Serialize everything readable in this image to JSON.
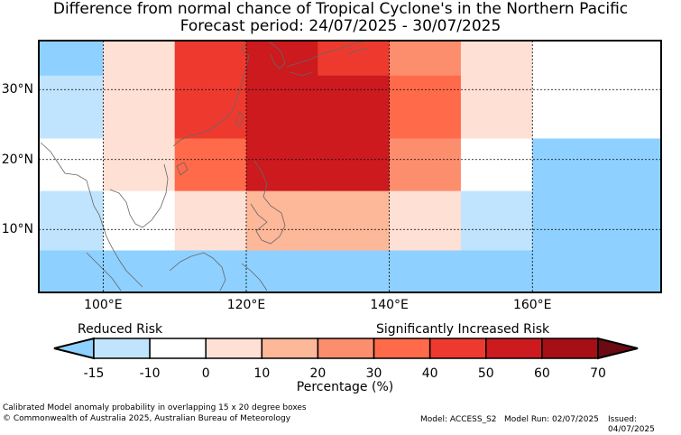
{
  "title": {
    "line1": "Difference from normal chance of Tropical Cyclone's in the Northern Pacific",
    "line2": "Forecast period: 24/07/2025 - 30/07/2025"
  },
  "map": {
    "lon_range": [
      91,
      178
    ],
    "lat_range": [
      1,
      37
    ],
    "lat_ticks": [
      {
        "value": 10,
        "label": "10°N"
      },
      {
        "value": 20,
        "label": "20°N"
      },
      {
        "value": 30,
        "label": "30°N"
      }
    ],
    "lon_ticks": [
      {
        "value": 100,
        "label": "100°E"
      },
      {
        "value": 120,
        "label": "120°E"
      },
      {
        "value": 140,
        "label": "140°E"
      },
      {
        "value": 160,
        "label": "160°E"
      }
    ],
    "cells": [
      {
        "lon0": 91,
        "lon1": 100,
        "lat0": 32,
        "lat1": 37,
        "color": "#8ed0ff"
      },
      {
        "lon0": 91,
        "lon1": 100,
        "lat0": 23,
        "lat1": 32,
        "color": "#c0e4fe"
      },
      {
        "lon0": 91,
        "lon1": 100,
        "lat0": 15.5,
        "lat1": 23,
        "color": "#ffffff"
      },
      {
        "lon0": 91,
        "lon1": 100,
        "lat0": 7,
        "lat1": 15.5,
        "color": "#c0e4fe"
      },
      {
        "lon0": 91,
        "lon1": 100,
        "lat0": 1,
        "lat1": 7,
        "color": "#8ed0ff"
      },
      {
        "lon0": 100,
        "lon1": 110,
        "lat0": 15.5,
        "lat1": 37,
        "color": "#ffe0d5"
      },
      {
        "lon0": 100,
        "lon1": 110,
        "lat0": 7,
        "lat1": 15.5,
        "color": "#ffffff"
      },
      {
        "lon0": 100,
        "lon1": 110,
        "lat0": 1,
        "lat1": 7,
        "color": "#8ed0ff"
      },
      {
        "lon0": 110,
        "lon1": 120,
        "lat0": 23,
        "lat1": 37,
        "color": "#ee3a2e"
      },
      {
        "lon0": 110,
        "lon1": 120,
        "lat0": 15.5,
        "lat1": 23,
        "color": "#ff6a4a"
      },
      {
        "lon0": 110,
        "lon1": 120,
        "lat0": 7,
        "lat1": 15.5,
        "color": "#ffe0d5"
      },
      {
        "lon0": 110,
        "lon1": 120,
        "lat0": 1,
        "lat1": 7,
        "color": "#8ed0ff"
      },
      {
        "lon0": 120,
        "lon1": 130,
        "lat0": 15.5,
        "lat1": 37,
        "color": "#cc1a1e"
      },
      {
        "lon0": 120,
        "lon1": 130,
        "lat0": 7,
        "lat1": 15.5,
        "color": "#fdb799"
      },
      {
        "lon0": 120,
        "lon1": 130,
        "lat0": 1,
        "lat1": 7,
        "color": "#8ed0ff"
      },
      {
        "lon0": 130,
        "lon1": 140,
        "lat0": 32,
        "lat1": 37,
        "color": "#ee3a2e"
      },
      {
        "lon0": 130,
        "lon1": 140,
        "lat0": 15.5,
        "lat1": 32,
        "color": "#cc1a1e"
      },
      {
        "lon0": 130,
        "lon1": 140,
        "lat0": 7,
        "lat1": 15.5,
        "color": "#fdb799"
      },
      {
        "lon0": 130,
        "lon1": 140,
        "lat0": 1,
        "lat1": 7,
        "color": "#8ed0ff"
      },
      {
        "lon0": 140,
        "lon1": 150,
        "lat0": 32,
        "lat1": 37,
        "color": "#fd8e6d"
      },
      {
        "lon0": 140,
        "lon1": 150,
        "lat0": 23,
        "lat1": 32,
        "color": "#ff6a4a"
      },
      {
        "lon0": 140,
        "lon1": 150,
        "lat0": 15.5,
        "lat1": 23,
        "color": "#fd8e6d"
      },
      {
        "lon0": 140,
        "lon1": 150,
        "lat0": 7,
        "lat1": 15.5,
        "color": "#ffe0d5"
      },
      {
        "lon0": 140,
        "lon1": 150,
        "lat0": 1,
        "lat1": 7,
        "color": "#8ed0ff"
      },
      {
        "lon0": 150,
        "lon1": 160,
        "lat0": 23,
        "lat1": 37,
        "color": "#ffe0d5"
      },
      {
        "lon0": 150,
        "lon1": 160,
        "lat0": 15.5,
        "lat1": 23,
        "color": "#ffffff"
      },
      {
        "lon0": 150,
        "lon1": 160,
        "lat0": 7,
        "lat1": 15.5,
        "color": "#c0e4fe"
      },
      {
        "lon0": 150,
        "lon1": 160,
        "lat0": 1,
        "lat1": 7,
        "color": "#8ed0ff"
      },
      {
        "lon0": 160,
        "lon1": 178,
        "lat0": 23,
        "lat1": 37,
        "color": "#ffffff"
      },
      {
        "lon0": 160,
        "lon1": 178,
        "lat0": 1,
        "lat1": 23,
        "color": "#8ed0ff"
      }
    ]
  },
  "colorbar": {
    "label_left": "Reduced Risk",
    "label_right": "Significantly Increased Risk",
    "xlabel": "Percentage (%)",
    "ticks": [
      "-15",
      "-10",
      "0",
      "10",
      "20",
      "30",
      "40",
      "50",
      "60",
      "70"
    ],
    "under_color": "#8ed0ff",
    "over_color": "#6b0a12",
    "segments": [
      {
        "from": -15,
        "to": -10,
        "color": "#c0e4fe"
      },
      {
        "from": -10,
        "to": 0,
        "color": "#ffffff"
      },
      {
        "from": 0,
        "to": 10,
        "color": "#ffe0d5"
      },
      {
        "from": 10,
        "to": 20,
        "color": "#fdb799"
      },
      {
        "from": 20,
        "to": 30,
        "color": "#fd8e6d"
      },
      {
        "from": 30,
        "to": 40,
        "color": "#ff6a4a"
      },
      {
        "from": 40,
        "to": 50,
        "color": "#ee3a2e"
      },
      {
        "from": 50,
        "to": 60,
        "color": "#cc1a1e"
      },
      {
        "from": 60,
        "to": 70,
        "color": "#a50f15"
      }
    ]
  },
  "footer": {
    "note": "Calibrated Model anomaly probability in overlapping 15 x 20 degree boxes",
    "copyright": "© Commonwealth of Australia 2025, Australian Bureau of Meteorology",
    "model": "Model: ACCESS_S2",
    "model_run": "Model Run: 02/07/2025",
    "issued": "Issued: 04/07/2025"
  }
}
